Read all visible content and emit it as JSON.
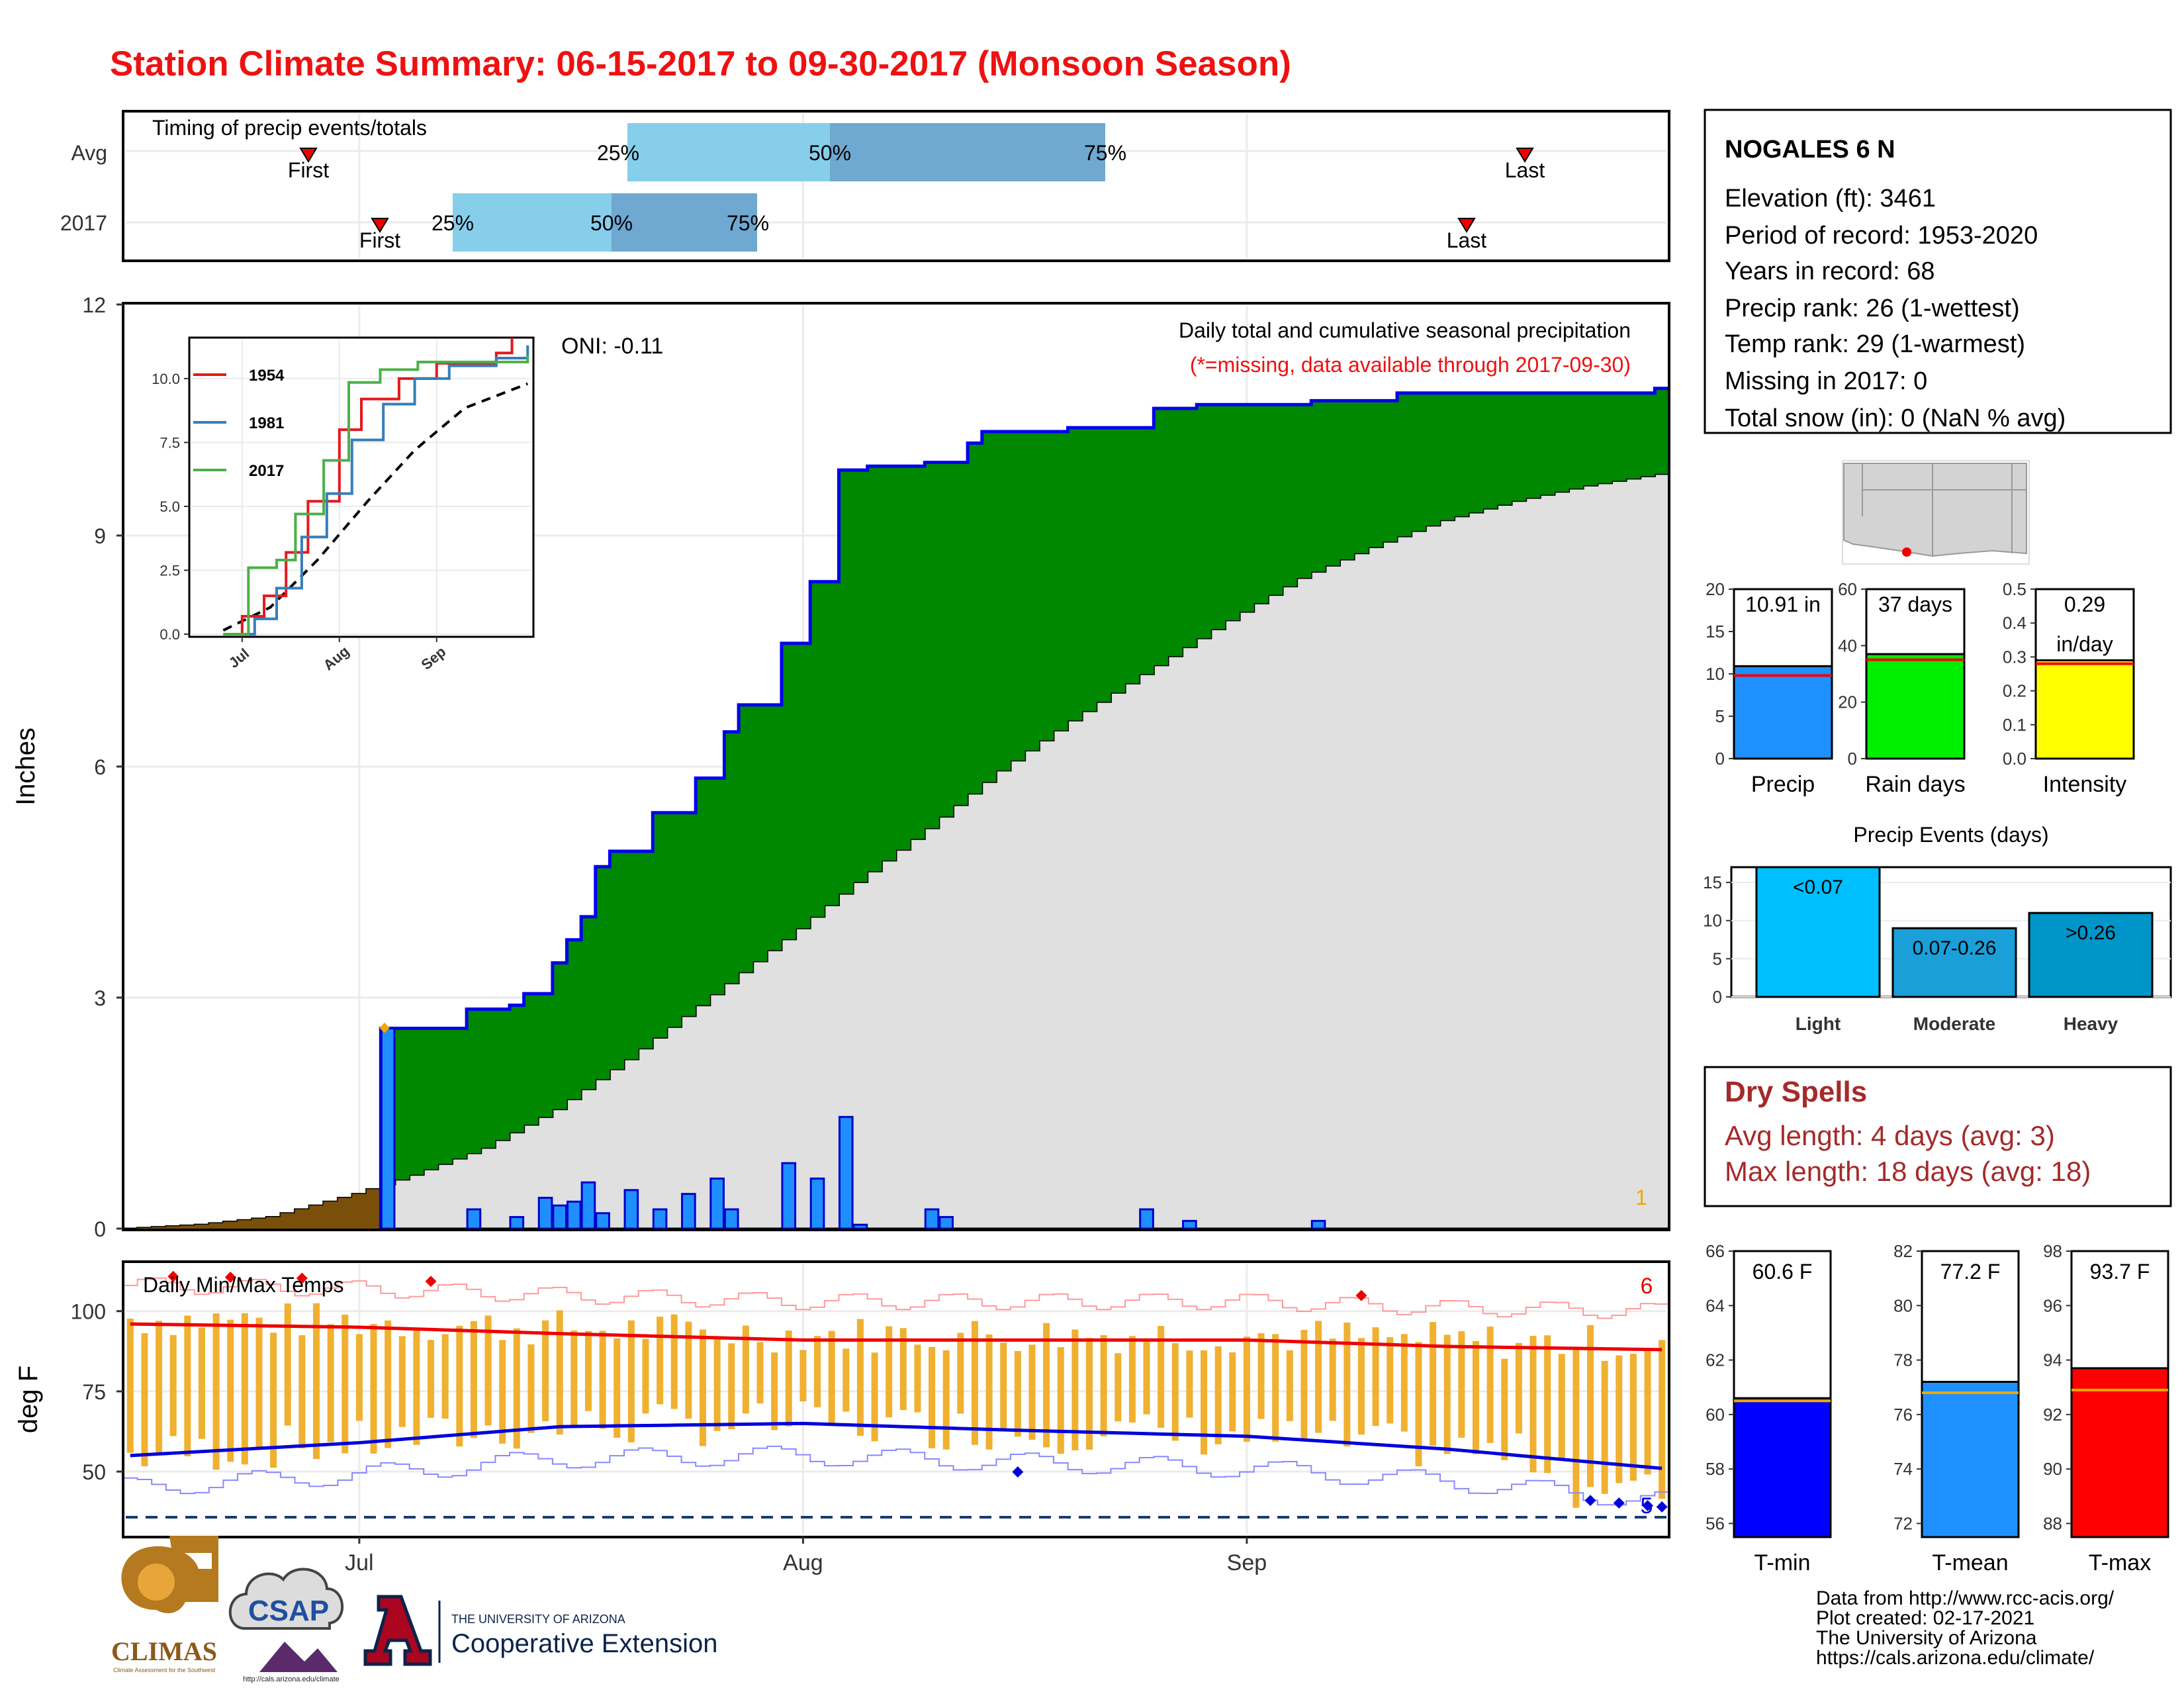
{
  "title": "Station Climate Summary: 06-15-2017 to 09-30-2017 (Monsoon Season)",
  "colors": {
    "title": "#ee1111",
    "blue_bar": "#1f8fff",
    "green_fill": "#008800",
    "brown_fill": "#7a4f0a",
    "grey_fill": "#e0e0e0",
    "q_light": "#87ceeb",
    "q_dark": "#6fa8d0",
    "event_light": "#00bfff",
    "event_mod": "#1a9fd8",
    "event_heavy": "#0095c8",
    "dry_spell": "#a52a2a",
    "orange": "#f0a800"
  },
  "x_axis": {
    "ticks": [
      "Jul",
      "Aug",
      "Sep"
    ]
  },
  "timing": {
    "title": "Timing of precip events/totals",
    "rows": [
      "Avg",
      "2017"
    ],
    "labels": {
      "first": "First",
      "last": "Last",
      "q25": "25%",
      "q50": "50%",
      "q75": "75%"
    }
  },
  "main": {
    "y_label": "Inches",
    "y_ticks": [
      "0",
      "3",
      "6",
      "9",
      "12"
    ],
    "oni": "ONI: -0.11",
    "subtitle": "Daily total and cumulative seasonal precipitation",
    "missing_note": "(*=missing, data available through 2017-09-30)",
    "corner_count": "1"
  },
  "inset": {
    "y_ticks": [
      "0.0",
      "2.5",
      "5.0",
      "7.5",
      "10.0"
    ],
    "x_ticks": [
      "Jul",
      "Aug",
      "Sep"
    ],
    "legend": [
      {
        "name": "1954",
        "color": "#e41a1c"
      },
      {
        "name": "1981",
        "color": "#377eb8"
      },
      {
        "name": "2017",
        "color": "#4daf4a"
      }
    ]
  },
  "temps": {
    "title": "Daily Min/Max Temps",
    "y_label": "deg F",
    "y_ticks": [
      "50",
      "75",
      "100"
    ],
    "count_max": "6",
    "count_min": "5"
  },
  "station": {
    "name": "NOGALES 6 N",
    "lines": [
      "Elevation (ft): 3461",
      "Period of record: 1953-2020",
      "Years in record: 68",
      "Precip rank: 26 (1-wettest)",
      "Temp rank: 29 (1-warmest)",
      "Missing in 2017: 0",
      "Total snow (in): 0 (NaN % avg)"
    ]
  },
  "summary_bars": [
    {
      "label": "Precip",
      "value_text": "10.91 in",
      "ticks": [
        "0",
        "5",
        "10",
        "15",
        "20"
      ]
    },
    {
      "label": "Rain days",
      "value_text": "37 days",
      "ticks": [
        "0",
        "20",
        "40",
        "60"
      ]
    },
    {
      "label": "Intensity",
      "value_text": "0.29",
      "value_text2": "in/day",
      "ticks": [
        "0.0",
        "0.1",
        "0.2",
        "0.3",
        "0.4",
        "0.5"
      ]
    }
  ],
  "events": {
    "title": "Precip Events (days)",
    "ticks": [
      "0",
      "5",
      "10",
      "15"
    ],
    "bars": [
      {
        "category": "Light",
        "label": "<0.07"
      },
      {
        "category": "Moderate",
        "label": "0.07-0.26"
      },
      {
        "category": "Heavy",
        "label": ">0.26"
      }
    ]
  },
  "dry_spells": {
    "title": "Dry Spells",
    "avg": "Avg length: 4 days (avg: 3)",
    "max": "Max length: 18 days (avg: 18)"
  },
  "temp_bars": [
    {
      "label": "T-min",
      "value_text": "60.6 F",
      "ticks": [
        "56",
        "58",
        "60",
        "62",
        "64",
        "66"
      ]
    },
    {
      "label": "T-mean",
      "value_text": "77.2 F",
      "ticks": [
        "72",
        "74",
        "76",
        "78",
        "80",
        "82"
      ]
    },
    {
      "label": "T-max",
      "value_text": "93.7 F",
      "ticks": [
        "88",
        "90",
        "92",
        "94",
        "96",
        "98"
      ]
    }
  ],
  "footer": {
    "lines": [
      "Data from http://www.rcc-acis.org/",
      "Plot created: 02-17-2021",
      "The University of Arizona",
      "https://cals.arizona.edu/climate/"
    ],
    "logos": {
      "climas": "CLIMAS",
      "climas_sub": "Climate Assessment for the Southwest",
      "csap": "CSAP",
      "csap_sub": "http://cals.arizona.edu/climate",
      "ua_small": "THE UNIVERSITY OF ARIZONA",
      "ua_big": "Cooperative Extension"
    }
  },
  "chart_data": [
    {
      "type": "area",
      "title": "Daily total and cumulative seasonal precipitation",
      "ylabel": "Inches",
      "ylim": [
        0,
        12
      ],
      "x_range": [
        "2017-06-15",
        "2017-09-30"
      ],
      "cumulative_2017": [
        [
          "2017-06-15",
          0.0
        ],
        [
          "2017-07-02",
          0.0
        ],
        [
          "2017-07-03",
          2.6
        ],
        [
          "2017-07-08",
          2.6
        ],
        [
          "2017-07-09",
          2.85
        ],
        [
          "2017-07-12",
          2.9
        ],
        [
          "2017-07-13",
          3.05
        ],
        [
          "2017-07-15",
          3.45
        ],
        [
          "2017-07-16",
          3.75
        ],
        [
          "2017-07-17",
          4.05
        ],
        [
          "2017-07-18",
          4.7
        ],
        [
          "2017-07-19",
          4.9
        ],
        [
          "2017-07-22",
          5.4
        ],
        [
          "2017-07-25",
          5.85
        ],
        [
          "2017-07-27",
          6.45
        ],
        [
          "2017-07-28",
          6.8
        ],
        [
          "2017-07-31",
          7.6
        ],
        [
          "2017-08-02",
          8.4
        ],
        [
          "2017-08-04",
          9.85
        ],
        [
          "2017-08-06",
          9.9
        ],
        [
          "2017-08-10",
          9.95
        ],
        [
          "2017-08-13",
          10.2
        ],
        [
          "2017-08-14",
          10.35
        ],
        [
          "2017-08-20",
          10.4
        ],
        [
          "2017-08-26",
          10.65
        ],
        [
          "2017-08-29",
          10.7
        ],
        [
          "2017-09-06",
          10.75
        ],
        [
          "2017-09-12",
          10.85
        ],
        [
          "2017-09-30",
          10.91
        ]
      ],
      "cumulative_avg": [
        [
          "2017-06-15",
          0.0
        ],
        [
          "2017-06-20",
          0.05
        ],
        [
          "2017-06-25",
          0.15
        ],
        [
          "2017-07-01",
          0.45
        ],
        [
          "2017-07-05",
          0.7
        ],
        [
          "2017-07-10",
          1.05
        ],
        [
          "2017-07-15",
          1.55
        ],
        [
          "2017-07-20",
          2.2
        ],
        [
          "2017-07-25",
          2.9
        ],
        [
          "2017-08-01",
          3.9
        ],
        [
          "2017-08-05",
          4.5
        ],
        [
          "2017-08-10",
          5.2
        ],
        [
          "2017-08-15",
          5.95
        ],
        [
          "2017-08-20",
          6.6
        ],
        [
          "2017-08-25",
          7.2
        ],
        [
          "2017-08-31",
          7.9
        ],
        [
          "2017-09-05",
          8.45
        ],
        [
          "2017-09-10",
          8.85
        ],
        [
          "2017-09-15",
          9.2
        ],
        [
          "2017-09-20",
          9.45
        ],
        [
          "2017-09-25",
          9.65
        ],
        [
          "2017-09-30",
          9.8
        ]
      ],
      "daily": [
        [
          "2017-07-03",
          2.6
        ],
        [
          "2017-07-09",
          0.25
        ],
        [
          "2017-07-12",
          0.15
        ],
        [
          "2017-07-14",
          0.4
        ],
        [
          "2017-07-15",
          0.3
        ],
        [
          "2017-07-16",
          0.35
        ],
        [
          "2017-07-17",
          0.6
        ],
        [
          "2017-07-18",
          0.2
        ],
        [
          "2017-07-20",
          0.5
        ],
        [
          "2017-07-22",
          0.25
        ],
        [
          "2017-07-24",
          0.45
        ],
        [
          "2017-07-26",
          0.65
        ],
        [
          "2017-07-27",
          0.25
        ],
        [
          "2017-07-31",
          0.85
        ],
        [
          "2017-08-02",
          0.65
        ],
        [
          "2017-08-04",
          1.45
        ],
        [
          "2017-08-05",
          0.05
        ],
        [
          "2017-08-10",
          0.25
        ],
        [
          "2017-08-11",
          0.15
        ],
        [
          "2017-08-25",
          0.25
        ],
        [
          "2017-08-28",
          0.1
        ],
        [
          "2017-09-06",
          0.1
        ]
      ]
    },
    {
      "type": "line",
      "title": "",
      "ylim": [
        0,
        11.5
      ],
      "series": [
        {
          "name": "1954",
          "values": [
            [
              "2017-06-25",
              0.0
            ],
            [
              "2017-07-01",
              0.7
            ],
            [
              "2017-07-08",
              1.5
            ],
            [
              "2017-07-15",
              3.2
            ],
            [
              "2017-07-22",
              5.2
            ],
            [
              "2017-08-01",
              8.0
            ],
            [
              "2017-08-08",
              9.2
            ],
            [
              "2017-08-20",
              10.0
            ],
            [
              "2017-09-01",
              10.6
            ],
            [
              "2017-09-20",
              11.0
            ],
            [
              "2017-09-25",
              11.6
            ]
          ]
        },
        {
          "name": "1981",
          "values": [
            [
              "2017-06-25",
              0.0
            ],
            [
              "2017-07-05",
              0.6
            ],
            [
              "2017-07-12",
              1.8
            ],
            [
              "2017-07-20",
              3.8
            ],
            [
              "2017-07-28",
              5.5
            ],
            [
              "2017-08-05",
              7.6
            ],
            [
              "2017-08-15",
              9.0
            ],
            [
              "2017-08-25",
              10.0
            ],
            [
              "2017-09-05",
              10.5
            ],
            [
              "2017-09-20",
              10.8
            ],
            [
              "2017-09-30",
              11.3
            ]
          ]
        },
        {
          "name": "2017",
          "values": [
            [
              "2017-06-25",
              0.0
            ],
            [
              "2017-07-03",
              2.6
            ],
            [
              "2017-07-12",
              2.9
            ],
            [
              "2017-07-18",
              4.7
            ],
            [
              "2017-07-27",
              6.8
            ],
            [
              "2017-08-04",
              9.85
            ],
            [
              "2017-08-14",
              10.35
            ],
            [
              "2017-08-26",
              10.65
            ],
            [
              "2017-09-30",
              10.91
            ]
          ]
        }
      ],
      "average": [
        [
          "2017-06-25",
          0.15
        ],
        [
          "2017-07-10",
          1.05
        ],
        [
          "2017-07-25",
          2.9
        ],
        [
          "2017-08-10",
          5.2
        ],
        [
          "2017-08-25",
          7.2
        ],
        [
          "2017-09-10",
          8.85
        ],
        [
          "2017-09-30",
          9.8
        ]
      ]
    },
    {
      "type": "bar",
      "title": "Daily Min/Max Temps",
      "ylabel": "deg F",
      "ylim": [
        30,
        115
      ],
      "avg_max": [
        [
          "2017-06-15",
          96
        ],
        [
          "2017-07-01",
          95
        ],
        [
          "2017-07-15",
          93
        ],
        [
          "2017-08-01",
          91
        ],
        [
          "2017-08-15",
          91
        ],
        [
          "2017-09-01",
          91
        ],
        [
          "2017-09-15",
          89
        ],
        [
          "2017-09-30",
          88
        ]
      ],
      "avg_min": [
        [
          "2017-06-15",
          55
        ],
        [
          "2017-07-01",
          59
        ],
        [
          "2017-07-15",
          64
        ],
        [
          "2017-08-01",
          65
        ],
        [
          "2017-08-15",
          63
        ],
        [
          "2017-09-01",
          61
        ],
        [
          "2017-09-15",
          57
        ],
        [
          "2017-09-30",
          51
        ]
      ],
      "record_low_reference": 33
    },
    {
      "type": "bar",
      "categories": [
        "Precip",
        "Rain days",
        "Intensity"
      ],
      "values": [
        10.91,
        37,
        0.29
      ],
      "averages": [
        9.8,
        35,
        0.28
      ],
      "ylims": [
        [
          0,
          20
        ],
        [
          0,
          60
        ],
        [
          0,
          0.5
        ]
      ]
    },
    {
      "type": "bar",
      "title": "Precip Events (days)",
      "categories": [
        "Light",
        "Moderate",
        "Heavy"
      ],
      "values": [
        17,
        9,
        11
      ],
      "ylim": [
        0,
        17
      ]
    },
    {
      "type": "bar",
      "categories": [
        "T-min",
        "T-mean",
        "T-max"
      ],
      "values": [
        60.6,
        77.2,
        93.7
      ],
      "averages": [
        60.5,
        76.8,
        92.9
      ],
      "ylims": [
        [
          55.5,
          66
        ],
        [
          71.5,
          82
        ],
        [
          87.5,
          98
        ]
      ]
    }
  ]
}
